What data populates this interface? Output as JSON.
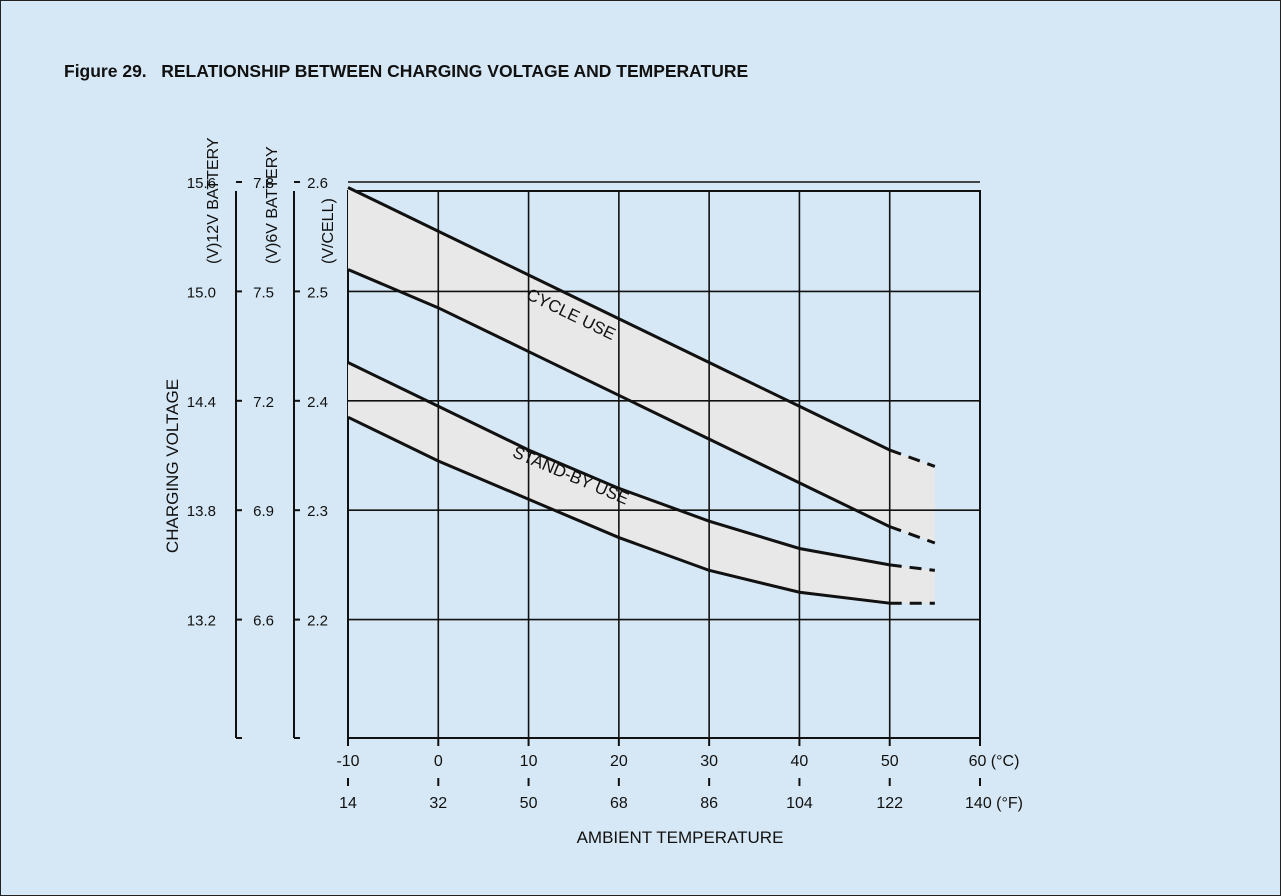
{
  "title": "Figure 29.   RELATIONSHIP BETWEEN CHARGING VOLTAGE AND TEMPERATURE",
  "colors": {
    "background": "#d6e8f5",
    "band_fill": "#e8e8e8",
    "line": "#111111"
  },
  "chart_data": {
    "type": "area",
    "title": "Figure 29.   RELATIONSHIP BETWEEN CHARGING VOLTAGE AND TEMPERATURE",
    "xlabel": "AMBIENT TEMPERATURE",
    "ylabel": "CHARGING VOLTAGE",
    "x_unit_c": "(°C)",
    "x_unit_f": "(°F)",
    "xlim": [
      -10,
      60
    ],
    "ylim": [
      2.1,
      2.6
    ],
    "x_ticks_c": [
      "-10",
      "0",
      "10",
      "20",
      "30",
      "40",
      "50",
      "60"
    ],
    "x_ticks_f": [
      "14",
      "32",
      "50",
      "68",
      "86",
      "104",
      "122",
      "140"
    ],
    "x_tick_values": [
      -10,
      0,
      10,
      20,
      30,
      40,
      50,
      60
    ],
    "grid": true,
    "y_axes": [
      {
        "unit_label": "(V)12V BATTERY",
        "ticks": [
          {
            "label": "15.6",
            "value": 2.6
          },
          {
            "label": "15.0",
            "value": 2.5
          },
          {
            "label": "14.4",
            "value": 2.4
          },
          {
            "label": "13.8",
            "value": 2.3
          },
          {
            "label": "13.2",
            "value": 2.2
          }
        ]
      },
      {
        "unit_label": "(V)6V BATTERY",
        "ticks": [
          {
            "label": "7.8",
            "value": 2.6
          },
          {
            "label": "7.5",
            "value": 2.5
          },
          {
            "label": "7.2",
            "value": 2.4
          },
          {
            "label": "6.9",
            "value": 2.3
          },
          {
            "label": "6.6",
            "value": 2.2
          }
        ]
      },
      {
        "unit_label": "(V/CELL)",
        "ticks": [
          {
            "label": "2.6",
            "value": 2.6
          },
          {
            "label": "2.5",
            "value": 2.5
          },
          {
            "label": "2.4",
            "value": 2.4
          },
          {
            "label": "2.3",
            "value": 2.3
          },
          {
            "label": "2.2",
            "value": 2.2
          }
        ]
      }
    ],
    "series": [
      {
        "name": "CYCLE USE",
        "upper": {
          "x": [
            -10,
            0,
            10,
            20,
            30,
            40,
            50
          ],
          "y": [
            2.595,
            2.555,
            2.515,
            2.475,
            2.435,
            2.395,
            2.355
          ]
        },
        "lower": {
          "x": [
            -10,
            0,
            10,
            20,
            30,
            40,
            50
          ],
          "y": [
            2.52,
            2.485,
            2.445,
            2.405,
            2.365,
            2.325,
            2.285
          ]
        },
        "extrapolated": {
          "x": [
            50,
            55
          ],
          "upper_y": [
            2.355,
            2.34
          ],
          "lower_y": [
            2.285,
            2.27
          ]
        }
      },
      {
        "name": "STAND-BY USE",
        "upper": {
          "x": [
            -10,
            0,
            10,
            20,
            30,
            40,
            50
          ],
          "y": [
            2.435,
            2.395,
            2.355,
            2.32,
            2.29,
            2.265,
            2.25
          ]
        },
        "lower": {
          "x": [
            -10,
            0,
            10,
            20,
            30,
            40,
            50
          ],
          "y": [
            2.385,
            2.345,
            2.31,
            2.275,
            2.245,
            2.225,
            2.215
          ]
        },
        "extrapolated": {
          "x": [
            50,
            55
          ],
          "upper_y": [
            2.25,
            2.245
          ],
          "lower_y": [
            2.215,
            2.215
          ]
        }
      }
    ]
  }
}
